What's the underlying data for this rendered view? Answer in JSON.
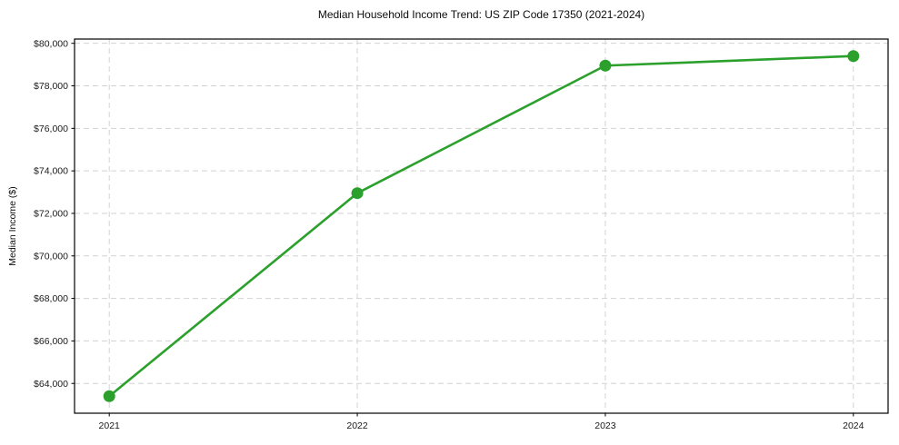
{
  "chart_data": {
    "type": "line",
    "title": "Median Household Income Trend: US ZIP Code 17350 (2021-2024)",
    "xlabel": "",
    "ylabel": "Median Income ($)",
    "x": [
      2021,
      2022,
      2023,
      2024
    ],
    "series": [
      {
        "name": "Median Household Income",
        "values": [
          63400,
          72950,
          78950,
          79400
        ]
      }
    ],
    "xticks": [
      2021,
      2022,
      2023,
      2024
    ],
    "xtick_labels": [
      "2021",
      "2022",
      "2023",
      "2024"
    ],
    "yticks": [
      64000,
      66000,
      68000,
      70000,
      72000,
      74000,
      76000,
      78000,
      80000
    ],
    "ytick_labels": [
      "$64,000",
      "$66,000",
      "$68,000",
      "$70,000",
      "$72,000",
      "$74,000",
      "$76,000",
      "$78,000",
      "$80,000"
    ],
    "xlim": [
      2020.86,
      2024.14
    ],
    "ylim": [
      62600,
      80200
    ],
    "grid": true,
    "grid_style": "dashed",
    "legend": false,
    "marker": "circle",
    "marker_size": 6.5,
    "line_width": 2.6,
    "colors": {
      "line": "#2ca02c",
      "grid": "#d2d2d2",
      "axis": "#000000",
      "text": "#1a1a1a",
      "background": "#ffffff"
    }
  }
}
